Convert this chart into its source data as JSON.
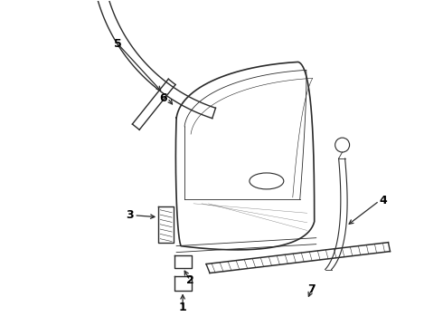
{
  "bg_color": "#ffffff",
  "lc": "#2a2a2a",
  "fs": 9,
  "figsize": [
    4.9,
    3.6
  ],
  "dpi": 100
}
